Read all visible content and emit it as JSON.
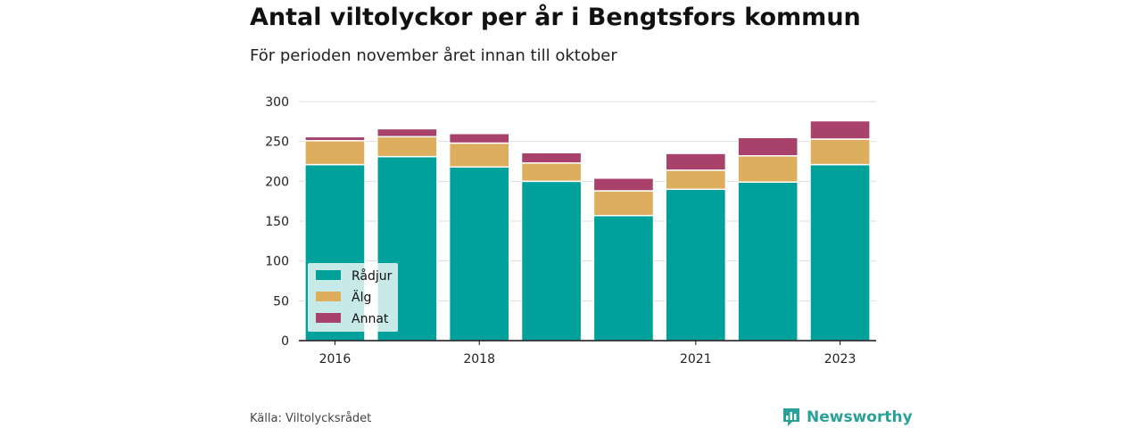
{
  "header": {
    "title": "Antal viltolyckor per år i Bengtsfors kommun",
    "subtitle": "För perioden november året innan till oktober"
  },
  "footer": {
    "source": "Källa: Viltolycksrådet",
    "brand": "Newsworthy"
  },
  "colors": {
    "radjur": "#00a19a",
    "alg": "#dcae5d",
    "annat": "#a8426a",
    "brand": "#2aa198"
  },
  "icons": {
    "brand_logo": "newsworthy-logo-icon"
  },
  "chart_data": {
    "type": "bar",
    "stacked": true,
    "categories": [
      "2016",
      "2017",
      "2018",
      "2019",
      "2020",
      "2021",
      "2022",
      "2023"
    ],
    "x_tick_labels": [
      "2016",
      "",
      "2018",
      "",
      "",
      "2021",
      "",
      "2023"
    ],
    "series": [
      {
        "name": "Rådjur",
        "values": [
          221,
          231,
          218,
          200,
          157,
          190,
          199,
          221
        ]
      },
      {
        "name": "Älg",
        "values": [
          30,
          25,
          30,
          23,
          31,
          24,
          33,
          32
        ]
      },
      {
        "name": "Annat",
        "values": [
          5,
          10,
          12,
          13,
          16,
          21,
          23,
          23
        ]
      }
    ],
    "ylim": [
      0,
      300
    ],
    "yticks": [
      0,
      50,
      100,
      150,
      200,
      250,
      300
    ],
    "grid": true,
    "legend": "bottom-left"
  }
}
